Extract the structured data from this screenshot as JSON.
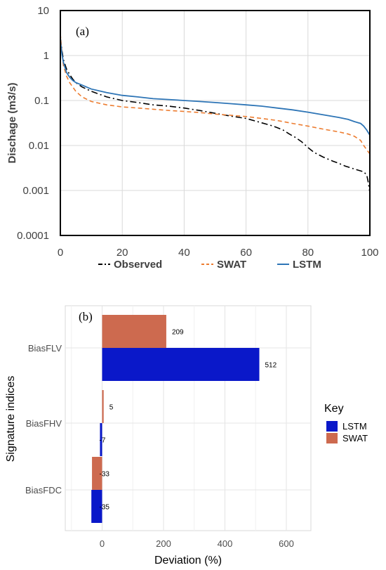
{
  "chart_data": [
    {
      "type": "line",
      "panel_label": "(a)",
      "xlabel": "",
      "ylabel": "Dischage (m3/s)",
      "y_scale": "log",
      "xlim": [
        0,
        100
      ],
      "ylim": [
        0.0001,
        10
      ],
      "x_ticks": [
        "0",
        "20",
        "40",
        "60",
        "80",
        "100"
      ],
      "y_ticks": [
        "0.0001",
        "0.001",
        "0.01",
        "0.1",
        "1",
        "10"
      ],
      "grid": true,
      "legend_position": "bottom",
      "series": [
        {
          "name": "Observed",
          "color": "#000000",
          "style": "dash-dot",
          "x": [
            0,
            0.5,
            1,
            2,
            3,
            4,
            5,
            7,
            10,
            15,
            20,
            25,
            30,
            35,
            40,
            45,
            50,
            55,
            60,
            65,
            68,
            70,
            72,
            74,
            76,
            78,
            80,
            82,
            85,
            88,
            90,
            92,
            95,
            98,
            99,
            99.5,
            100
          ],
          "y": [
            2.5,
            1.3,
            0.8,
            0.5,
            0.38,
            0.3,
            0.25,
            0.2,
            0.16,
            0.12,
            0.1,
            0.09,
            0.08,
            0.075,
            0.068,
            0.06,
            0.052,
            0.045,
            0.04,
            0.032,
            0.028,
            0.025,
            0.022,
            0.018,
            0.015,
            0.012,
            0.009,
            0.007,
            0.0055,
            0.0045,
            0.004,
            0.0035,
            0.003,
            0.0026,
            0.0022,
            0.0015,
            0.0009
          ]
        },
        {
          "name": "SWAT",
          "color": "#ed7d31",
          "style": "dashed",
          "x": [
            0,
            0.5,
            1,
            2,
            3,
            4,
            5,
            7,
            10,
            15,
            20,
            25,
            30,
            35,
            40,
            45,
            50,
            55,
            60,
            65,
            70,
            75,
            80,
            85,
            90,
            93,
            95,
            97,
            98,
            99,
            100
          ],
          "y": [
            3.0,
            1.2,
            0.6,
            0.35,
            0.25,
            0.2,
            0.16,
            0.12,
            0.095,
            0.08,
            0.072,
            0.068,
            0.064,
            0.06,
            0.057,
            0.054,
            0.05,
            0.047,
            0.044,
            0.04,
            0.036,
            0.031,
            0.027,
            0.023,
            0.02,
            0.018,
            0.016,
            0.013,
            0.01,
            0.008,
            0.0065
          ]
        },
        {
          "name": "LSTM",
          "color": "#2e75b6",
          "style": "solid",
          "x": [
            0,
            0.5,
            1,
            2,
            3,
            4,
            5,
            7,
            10,
            15,
            20,
            25,
            30,
            35,
            40,
            45,
            50,
            55,
            60,
            65,
            70,
            75,
            80,
            85,
            90,
            93,
            95,
            97,
            98,
            99,
            100
          ],
          "y": [
            2.2,
            1.1,
            0.7,
            0.42,
            0.33,
            0.28,
            0.25,
            0.22,
            0.18,
            0.15,
            0.13,
            0.12,
            0.11,
            0.105,
            0.1,
            0.095,
            0.09,
            0.085,
            0.08,
            0.075,
            0.068,
            0.062,
            0.055,
            0.048,
            0.042,
            0.038,
            0.034,
            0.031,
            0.027,
            0.022,
            0.017
          ]
        }
      ]
    },
    {
      "type": "bar",
      "orientation": "horizontal",
      "panel_label": "(b)",
      "xlabel": "Deviation (%)",
      "ylabel": "Signature indices",
      "xlim": [
        -120,
        680
      ],
      "x_ticks": [
        0,
        200,
        400,
        600
      ],
      "x_tick_labels": [
        "0",
        "200",
        "400",
        "600"
      ],
      "categories": [
        "BiasFLV",
        "BiasFHV",
        "BiasFDC"
      ],
      "grid": true,
      "legend_title": "Key",
      "legend_position": "right",
      "series": [
        {
          "name": "SWAT",
          "color": "#cd6a4f",
          "values": [
            209,
            5,
            -33
          ],
          "labels": [
            "209",
            "5",
            "-33"
          ]
        },
        {
          "name": "LSTM",
          "color": "#0a18c9",
          "values": [
            512,
            -7,
            -35
          ],
          "labels": [
            "512",
            "-7",
            "-35"
          ]
        }
      ]
    }
  ]
}
